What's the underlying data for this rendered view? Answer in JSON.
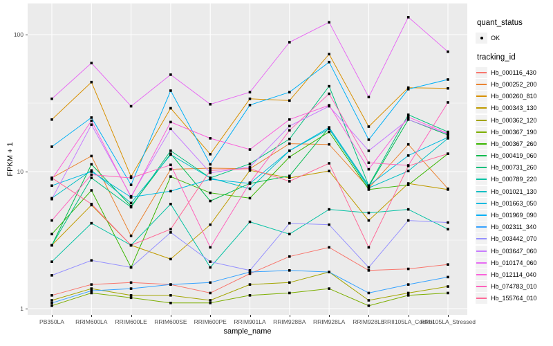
{
  "figure": {
    "background": "#FFFFFF",
    "panel_background": "#EBEBEB",
    "grid_color": "#FFFFFF",
    "axis_text_color": "#4D4D4D",
    "point_color": "#000000"
  },
  "legend": {
    "quant_status_title": "quant_status",
    "quant_status_items": [
      {
        "label": "OK"
      }
    ],
    "tracking_id_title": "tracking_id",
    "key_background": "#F2F2F2"
  },
  "chart_data": {
    "type": "line",
    "title": "",
    "xlabel": "sample_name",
    "ylabel": "FPKM + 1",
    "y_scale": "log10",
    "ylim": [
      0.9,
      170
    ],
    "y_ticks": [
      1,
      10,
      100
    ],
    "y_minor_ticks": [
      3.162,
      31.62
    ],
    "grid": "on",
    "legend_position": "right",
    "point_shape": "black-square-dot",
    "categories": [
      "PB350LA",
      "RRIM600LA",
      "RRIM600LE",
      "RRIM600SE",
      "RRIM600PE",
      "RRIM901LA",
      "RRIM928BA",
      "RRIM928LA",
      "RRIM928LE",
      "RRII105LA_Control",
      "RRII105LA_Stressed"
    ],
    "series": [
      {
        "name": "Hb_000116_430",
        "color": "#F8766D",
        "values": [
          1.25,
          1.5,
          1.55,
          1.5,
          1.3,
          1.8,
          2.4,
          2.8,
          1.9,
          1.95,
          2.1
        ]
      },
      {
        "name": "Hb_000252_200",
        "color": "#EA8331",
        "values": [
          9.0,
          13.0,
          3.4,
          10.4,
          10.6,
          10.5,
          16.0,
          15.8,
          7.6,
          15.8,
          7.5
        ]
      },
      {
        "name": "Hb_000260_810",
        "color": "#D89000",
        "values": [
          24,
          45,
          9.2,
          29,
          13.4,
          34,
          33,
          72,
          21.3,
          41,
          40.5
        ]
      },
      {
        "name": "Hb_000343_130",
        "color": "#C09B00",
        "values": [
          2.9,
          5.7,
          2.9,
          2.3,
          4.1,
          10.2,
          9.0,
          10.1,
          4.4,
          8.2,
          7.4
        ]
      },
      {
        "name": "Hb_000362_120",
        "color": "#A3A500",
        "values": [
          1.15,
          1.4,
          1.25,
          1.25,
          1.15,
          1.5,
          1.55,
          1.85,
          1.15,
          1.3,
          1.45
        ]
      },
      {
        "name": "Hb_000367_190",
        "color": "#7CAE00",
        "values": [
          1.05,
          1.3,
          1.2,
          1.1,
          1.1,
          1.25,
          1.3,
          1.4,
          1.05,
          1.25,
          1.3
        ]
      },
      {
        "name": "Hb_000367_260",
        "color": "#39B600",
        "values": [
          3.5,
          7.3,
          2.0,
          9.2,
          7.0,
          6.4,
          12.8,
          19.5,
          7.4,
          8.0,
          13.5
        ]
      },
      {
        "name": "Hb_000419_060",
        "color": "#00BB4E",
        "values": [
          2.9,
          11.3,
          5.6,
          13.5,
          6.1,
          8.2,
          9.3,
          21,
          7.8,
          24,
          18.5
        ]
      },
      {
        "name": "Hb_000731_260",
        "color": "#00BF7D",
        "values": [
          2.9,
          9.0,
          5.5,
          14.2,
          9.0,
          11.4,
          17.3,
          42,
          7.9,
          26,
          19.5
        ]
      },
      {
        "name": "Hb_000789_220",
        "color": "#00C1A3",
        "values": [
          2.2,
          4.2,
          2.9,
          5.8,
          2.0,
          4.3,
          3.5,
          5.3,
          5.0,
          5.3,
          3.8
        ]
      },
      {
        "name": "Hb_001021_130",
        "color": "#00BFC4",
        "values": [
          6.4,
          10.2,
          5.9,
          13.3,
          9.0,
          7.5,
          14.2,
          20.5,
          7.6,
          10.1,
          17.5
        ]
      },
      {
        "name": "Hb_001663_050",
        "color": "#00BAE0",
        "values": [
          7.9,
          10.0,
          6.5,
          7.2,
          8.8,
          8.2,
          14.2,
          21,
          7.9,
          13.1,
          17.8
        ]
      },
      {
        "name": "Hb_001969_090",
        "color": "#00B0F6",
        "values": [
          15.2,
          24.8,
          8.0,
          39,
          11.3,
          30.6,
          38,
          63,
          17.1,
          40,
          47
        ]
      },
      {
        "name": "Hb_002311_340",
        "color": "#35A2FF",
        "values": [
          1.1,
          1.35,
          1.4,
          1.5,
          1.55,
          1.85,
          1.9,
          1.85,
          1.3,
          1.5,
          1.7
        ]
      },
      {
        "name": "Hb_003442_070",
        "color": "#9590FF",
        "values": [
          1.75,
          2.25,
          2.0,
          3.6,
          2.2,
          1.9,
          4.2,
          4.1,
          2.0,
          4.4,
          4.25
        ]
      },
      {
        "name": "Hb_003647_060",
        "color": "#C77CFF",
        "values": [
          6.3,
          22,
          6.6,
          20.5,
          9.8,
          10.8,
          21.5,
          30,
          14.2,
          24,
          18.8
        ]
      },
      {
        "name": "Hb_010174_060",
        "color": "#E76BF3",
        "values": [
          34,
          62,
          30,
          51,
          31,
          38,
          88,
          123,
          35,
          134,
          75
        ]
      },
      {
        "name": "Hb_012114_040",
        "color": "#FA62DB",
        "values": [
          8.8,
          23.5,
          6.5,
          23,
          17.5,
          14.5,
          24,
          30.5,
          10.4,
          25,
          19
        ]
      },
      {
        "name": "Hb_074783_010",
        "color": "#FF62BC",
        "values": [
          4.4,
          9.5,
          9.0,
          11.2,
          2.8,
          8.3,
          20,
          37,
          11.6,
          11.1,
          32
        ]
      },
      {
        "name": "Hb_155764_010",
        "color": "#FF6A98",
        "values": [
          9.0,
          5.8,
          2.9,
          3.8,
          10.2,
          10.5,
          8.5,
          11.5,
          2.8,
          11.0,
          13.5
        ]
      }
    ]
  }
}
